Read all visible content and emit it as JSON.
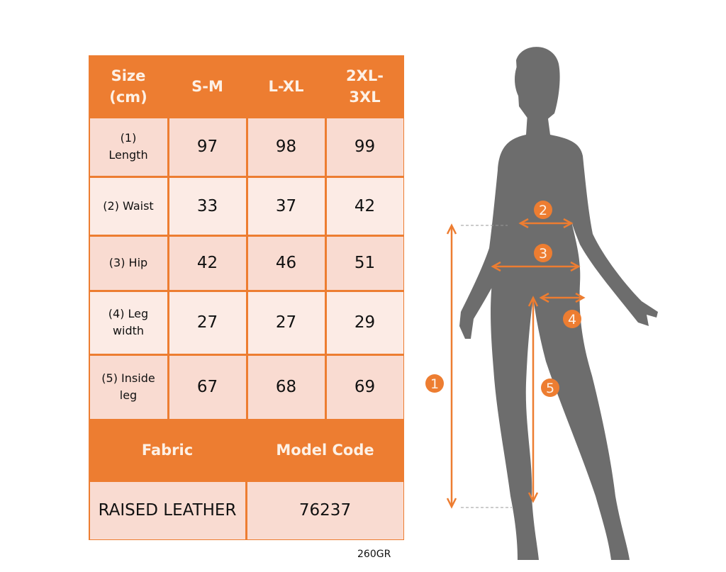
{
  "table": {
    "header": [
      "Size (cm)",
      "S-M",
      "L-XL",
      "2XL-3XL"
    ],
    "rows": [
      {
        "label": "(1) Length",
        "values": [
          "97",
          "98",
          "99"
        ]
      },
      {
        "label": "(2) Waist",
        "values": [
          "33",
          "37",
          "42"
        ]
      },
      {
        "label": "(3) Hip",
        "values": [
          "42",
          "46",
          "51"
        ]
      },
      {
        "label": "(4) Leg width",
        "values": [
          "27",
          "27",
          "29"
        ]
      },
      {
        "label": "(5) Inside leg",
        "values": [
          "67",
          "68",
          "69"
        ]
      }
    ],
    "fabric_label": "Fabric",
    "model_code_label": "Model Code",
    "fabric_value": "RAISED LEATHER",
    "model_code_value": "76237"
  },
  "weight_note": "260GR",
  "diagram": {
    "markers": [
      "1",
      "2",
      "3",
      "4",
      "5"
    ],
    "colors": {
      "accent": "#ed7d31",
      "silhouette": "#6d6d6d",
      "row_dark": "#f9dbd1",
      "row_light": "#fcebe5"
    }
  }
}
